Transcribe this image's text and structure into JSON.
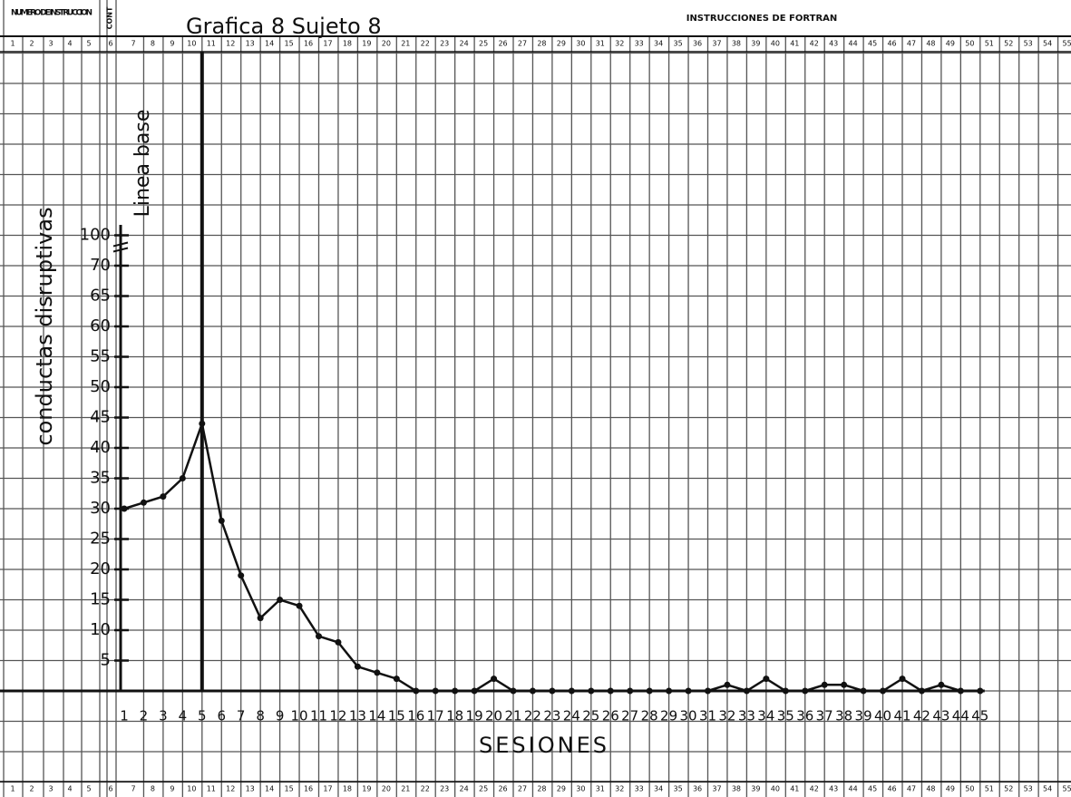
{
  "header": {
    "left": "NUMERO DE INSTRUCCION",
    "cont": "CONT",
    "right": "INSTRUCCIONES DE FORTRAN",
    "columns": [
      1,
      2,
      3,
      4,
      5,
      6,
      7,
      8,
      9,
      10,
      11,
      12,
      13,
      14,
      15,
      16,
      17,
      18,
      19,
      20,
      21,
      22,
      23,
      24,
      25,
      26,
      27,
      28,
      29,
      30,
      31,
      32,
      33,
      34,
      35,
      36,
      37,
      38,
      39,
      40,
      41,
      42,
      43,
      44,
      45,
      46,
      47,
      48,
      49,
      50,
      51,
      52,
      53,
      54,
      55
    ]
  },
  "chart_data": {
    "type": "line",
    "title": "Grafica 8 Sujeto 8",
    "ylabel": "conductas disruptivas",
    "xlabel": "SESIONES",
    "phase_label": "Linea base",
    "phase_end": 5,
    "axis_break_label": "100",
    "x": [
      1,
      2,
      3,
      4,
      5,
      6,
      7,
      8,
      9,
      10,
      11,
      12,
      13,
      14,
      15,
      16,
      17,
      18,
      19,
      20,
      21,
      22,
      23,
      24,
      25,
      26,
      27,
      28,
      29,
      30,
      31,
      32,
      33,
      34,
      35,
      36,
      37,
      38,
      39,
      40,
      41,
      42,
      43,
      44,
      45
    ],
    "values": [
      30,
      31,
      32,
      35,
      44,
      28,
      19,
      12,
      15,
      14,
      9,
      8,
      4,
      3,
      2,
      0,
      0,
      0,
      0,
      2,
      0,
      0,
      0,
      0,
      0,
      0,
      0,
      0,
      0,
      0,
      0,
      1,
      0,
      2,
      0,
      0,
      1,
      1,
      0,
      0,
      2,
      0,
      1,
      0,
      0
    ],
    "color": "#111111",
    "ylim": [
      0,
      75
    ],
    "yticks": [
      5,
      10,
      15,
      20,
      25,
      30,
      35,
      40,
      45,
      50,
      55,
      60,
      65,
      70
    ]
  }
}
